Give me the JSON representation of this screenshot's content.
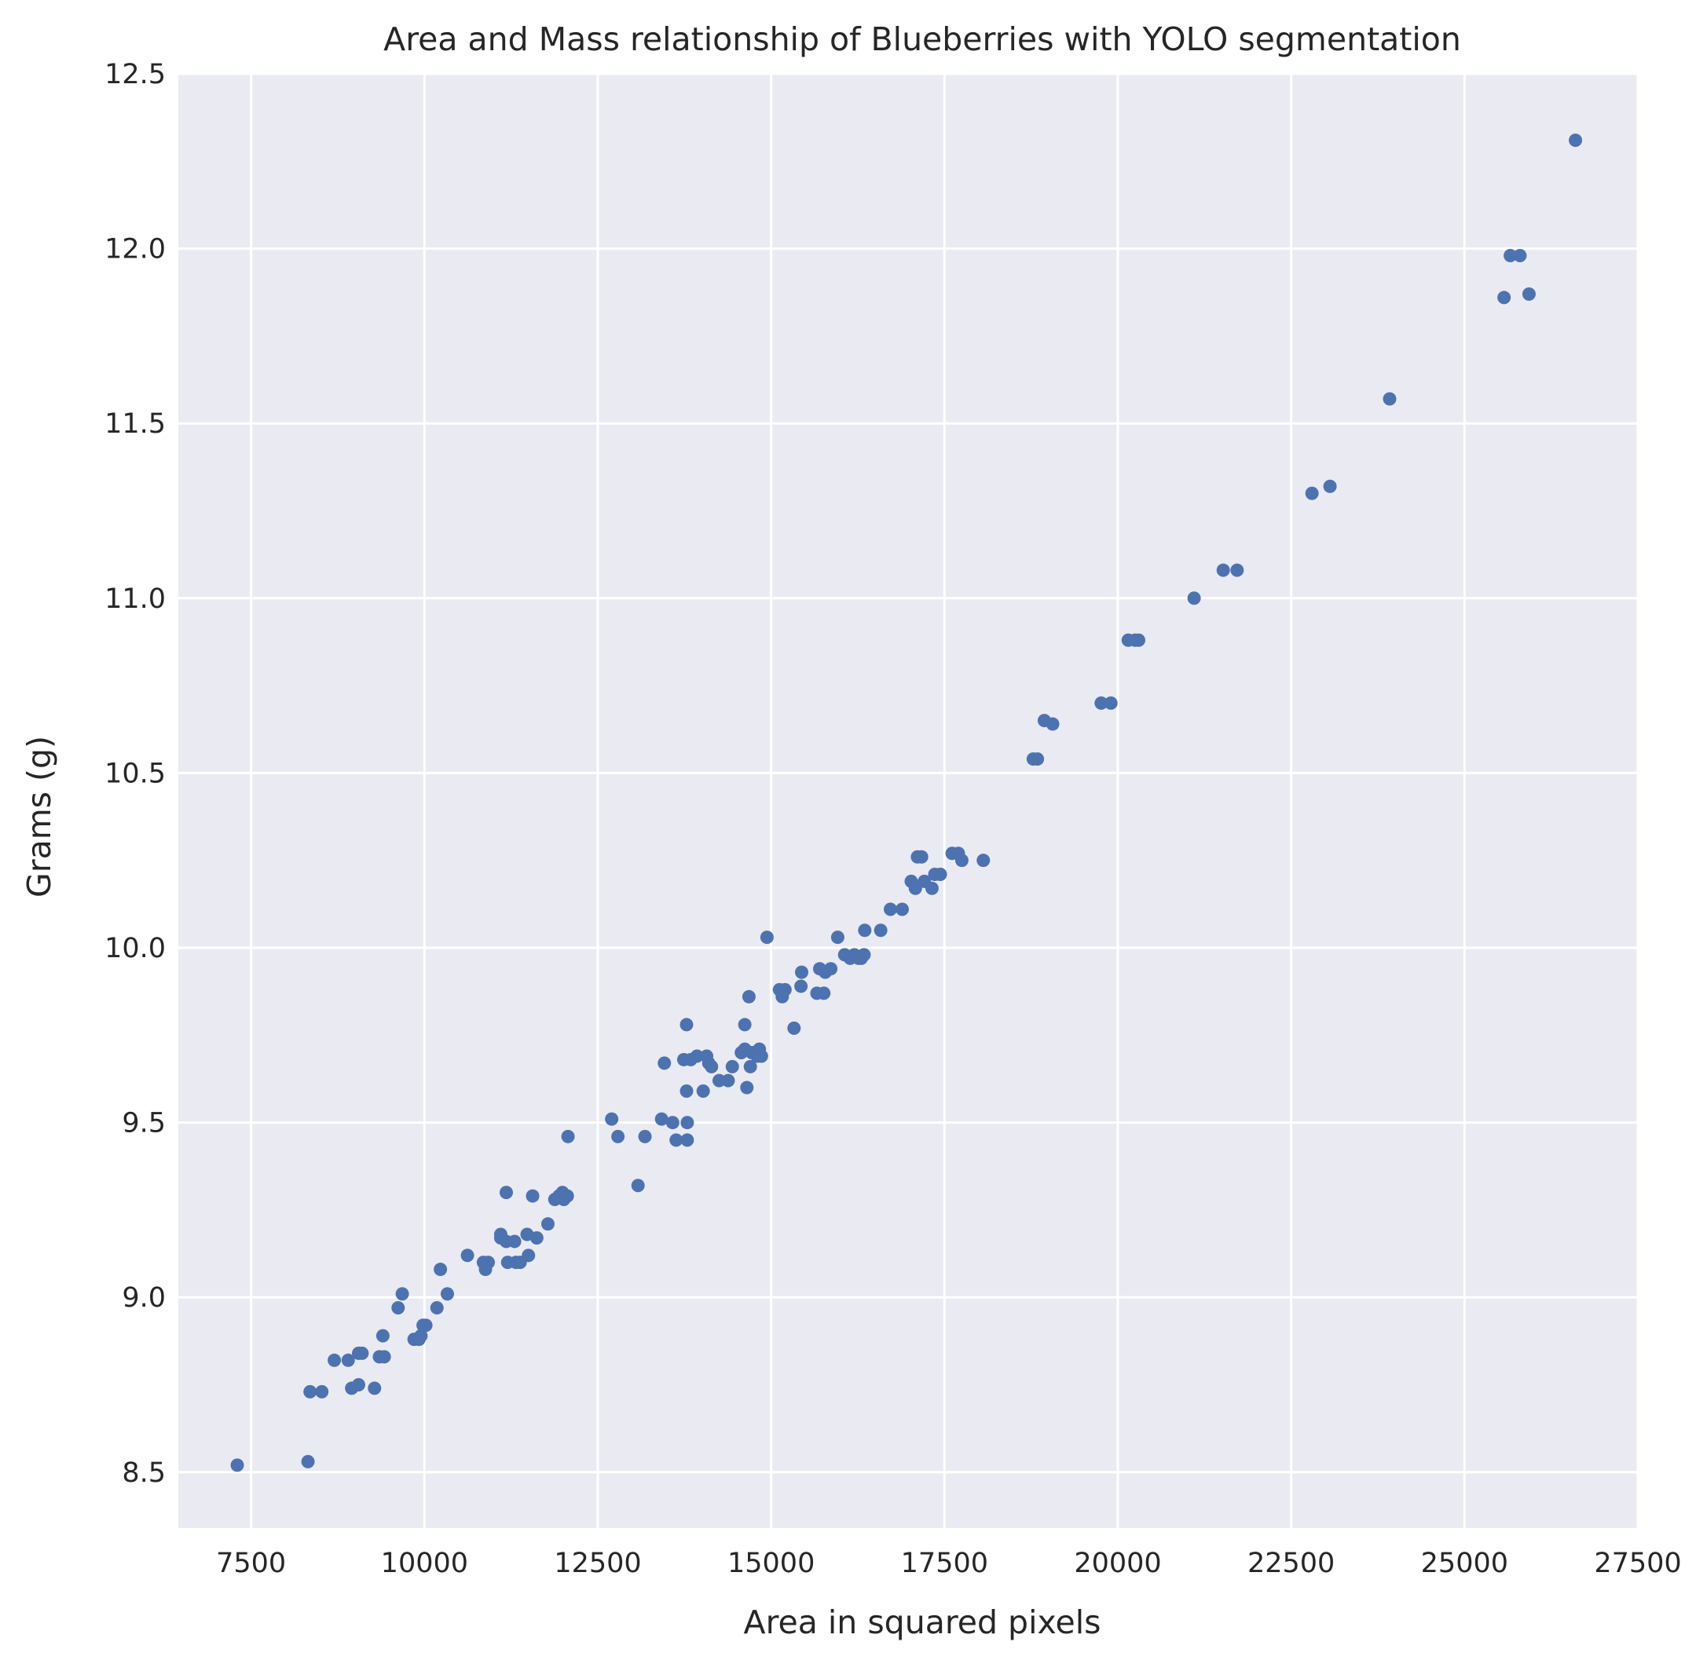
{
  "chart_data": {
    "type": "scatter",
    "title": "Area and Mass relationship of Blueberries with YOLO segmentation",
    "xlabel": "Area in squared pixels",
    "ylabel": "Grams (g)",
    "xlim": [
      6450,
      27500
    ],
    "ylim": [
      8.34,
      12.5
    ],
    "x_ticks": [
      7500,
      10000,
      12500,
      15000,
      17500,
      20000,
      22500,
      25000,
      27500
    ],
    "y_ticks": [
      8.5,
      9.0,
      9.5,
      10.0,
      10.5,
      11.0,
      11.5,
      12.0,
      12.5
    ],
    "x_tick_labels": [
      "7500",
      "10000",
      "12500",
      "15000",
      "17500",
      "20000",
      "22500",
      "25000",
      "27500"
    ],
    "y_tick_labels": [
      "8.5",
      "9.0",
      "9.5",
      "10.0",
      "10.5",
      "11.0",
      "11.5",
      "12.0",
      "12.5"
    ],
    "grid": true,
    "background_color": "#eaeaf2",
    "marker_color": "#4c72b0",
    "points": [
      [
        7300,
        8.52
      ],
      [
        8320,
        8.53
      ],
      [
        8350,
        8.73
      ],
      [
        8520,
        8.73
      ],
      [
        8700,
        8.82
      ],
      [
        8900,
        8.82
      ],
      [
        8950,
        8.74
      ],
      [
        9050,
        8.75
      ],
      [
        9050,
        8.84
      ],
      [
        9100,
        8.84
      ],
      [
        9280,
        8.74
      ],
      [
        9350,
        8.83
      ],
      [
        9420,
        8.83
      ],
      [
        9400,
        8.89
      ],
      [
        9620,
        8.97
      ],
      [
        9680,
        9.01
      ],
      [
        9850,
        8.88
      ],
      [
        9920,
        8.88
      ],
      [
        9950,
        8.89
      ],
      [
        9980,
        8.92
      ],
      [
        10020,
        8.92
      ],
      [
        10180,
        8.97
      ],
      [
        10230,
        9.08
      ],
      [
        10330,
        9.01
      ],
      [
        10620,
        9.12
      ],
      [
        10850,
        9.1
      ],
      [
        10880,
        9.08
      ],
      [
        10920,
        9.1
      ],
      [
        11100,
        9.18
      ],
      [
        11100,
        9.17
      ],
      [
        11180,
        9.3
      ],
      [
        11180,
        9.16
      ],
      [
        11200,
        9.1
      ],
      [
        11300,
        9.16
      ],
      [
        11320,
        9.1
      ],
      [
        11380,
        9.1
      ],
      [
        11480,
        9.18
      ],
      [
        11500,
        9.12
      ],
      [
        11560,
        9.29
      ],
      [
        11620,
        9.17
      ],
      [
        11780,
        9.21
      ],
      [
        11880,
        9.28
      ],
      [
        11940,
        9.29
      ],
      [
        11990,
        9.3
      ],
      [
        12010,
        9.28
      ],
      [
        12060,
        9.29
      ],
      [
        12070,
        9.46
      ],
      [
        12700,
        9.51
      ],
      [
        12790,
        9.46
      ],
      [
        13080,
        9.32
      ],
      [
        13180,
        9.46
      ],
      [
        13420,
        9.51
      ],
      [
        13460,
        9.67
      ],
      [
        13580,
        9.5
      ],
      [
        13630,
        9.45
      ],
      [
        13740,
        9.68
      ],
      [
        13780,
        9.78
      ],
      [
        13780,
        9.59
      ],
      [
        13790,
        9.5
      ],
      [
        13790,
        9.45
      ],
      [
        13840,
        9.68
      ],
      [
        13930,
        9.69
      ],
      [
        14020,
        9.59
      ],
      [
        14070,
        9.69
      ],
      [
        14100,
        9.67
      ],
      [
        14140,
        9.66
      ],
      [
        14250,
        9.62
      ],
      [
        14380,
        9.62
      ],
      [
        14440,
        9.66
      ],
      [
        14570,
        9.7
      ],
      [
        14620,
        9.71
      ],
      [
        14620,
        9.78
      ],
      [
        14650,
        9.6
      ],
      [
        14680,
        9.86
      ],
      [
        14700,
        9.66
      ],
      [
        14720,
        9.7
      ],
      [
        14800,
        9.69
      ],
      [
        14830,
        9.71
      ],
      [
        14860,
        9.69
      ],
      [
        14940,
        10.03
      ],
      [
        15120,
        9.88
      ],
      [
        15160,
        9.86
      ],
      [
        15200,
        9.88
      ],
      [
        15330,
        9.77
      ],
      [
        15430,
        9.89
      ],
      [
        15440,
        9.93
      ],
      [
        15660,
        9.87
      ],
      [
        15700,
        9.94
      ],
      [
        15760,
        9.87
      ],
      [
        15780,
        9.93
      ],
      [
        15860,
        9.94
      ],
      [
        15960,
        10.03
      ],
      [
        16060,
        9.98
      ],
      [
        16140,
        9.97
      ],
      [
        16200,
        9.98
      ],
      [
        16260,
        9.97
      ],
      [
        16300,
        9.97
      ],
      [
        16350,
        10.05
      ],
      [
        16340,
        9.98
      ],
      [
        16580,
        10.05
      ],
      [
        16720,
        10.11
      ],
      [
        16890,
        10.11
      ],
      [
        17020,
        10.19
      ],
      [
        17080,
        10.17
      ],
      [
        17110,
        10.26
      ],
      [
        17170,
        10.26
      ],
      [
        17210,
        10.19
      ],
      [
        17320,
        10.17
      ],
      [
        17360,
        10.21
      ],
      [
        17440,
        10.21
      ],
      [
        17610,
        10.27
      ],
      [
        17700,
        10.27
      ],
      [
        17750,
        10.25
      ],
      [
        18060,
        10.25
      ],
      [
        18780,
        10.54
      ],
      [
        18840,
        10.54
      ],
      [
        18940,
        10.65
      ],
      [
        19060,
        10.64
      ],
      [
        19760,
        10.7
      ],
      [
        19900,
        10.7
      ],
      [
        20150,
        10.88
      ],
      [
        20250,
        10.88
      ],
      [
        20300,
        10.88
      ],
      [
        21100,
        11.0
      ],
      [
        21520,
        11.08
      ],
      [
        21720,
        11.08
      ],
      [
        22800,
        11.3
      ],
      [
        23060,
        11.32
      ],
      [
        23920,
        11.57
      ],
      [
        25570,
        11.86
      ],
      [
        25660,
        11.98
      ],
      [
        25800,
        11.98
      ],
      [
        25930,
        11.87
      ],
      [
        26600,
        12.31
      ]
    ]
  }
}
